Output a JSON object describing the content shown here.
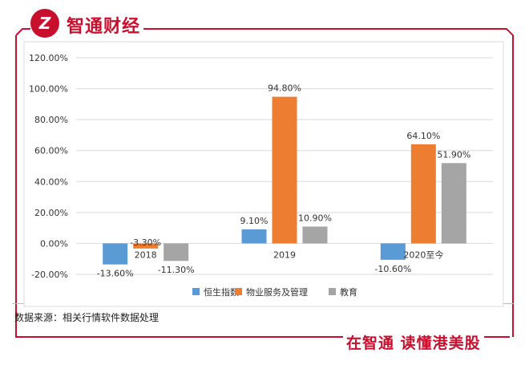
{
  "header": {
    "brand_name": "智通财经",
    "logo_letter": "Z"
  },
  "footer": {
    "source": "数据来源：相关行情软件数据处理",
    "slogan": "在智通  读懂港美股"
  },
  "colors": {
    "brand": "#c8102e",
    "series1": "#5b9bd5",
    "series2": "#ed7d31",
    "series3": "#a5a5a5"
  },
  "chart_data": {
    "type": "bar",
    "title": "",
    "xlabel": "",
    "ylabel": "",
    "categories": [
      "2018",
      "2019",
      "2020至今"
    ],
    "series": [
      {
        "name": "恒生指数",
        "values": [
          -13.6,
          9.1,
          -10.6
        ],
        "labels": [
          "-13.60%",
          "9.10%",
          "-10.60%"
        ]
      },
      {
        "name": "物业服务及管理",
        "values": [
          -3.3,
          94.8,
          64.1
        ],
        "labels": [
          "-3.30%",
          "94.80%",
          "64.10%"
        ]
      },
      {
        "name": "教育",
        "values": [
          -11.3,
          10.9,
          51.9
        ],
        "labels": [
          "-11.30%",
          "10.90%",
          "51.90%"
        ]
      }
    ],
    "ylim": [
      -20,
      120
    ],
    "yticks": [
      -20,
      0,
      20,
      40,
      60,
      80,
      100,
      120
    ],
    "ytick_labels": [
      "-20.00%",
      "0.00%",
      "20.00%",
      "40.00%",
      "60.00%",
      "80.00%",
      "100.00%",
      "120.00%"
    ],
    "grid": true,
    "legend_position": "bottom"
  }
}
